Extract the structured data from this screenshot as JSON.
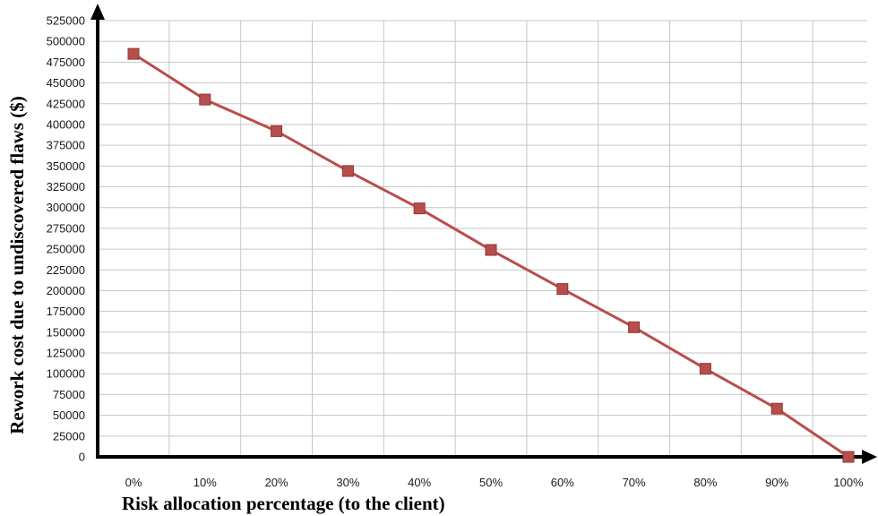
{
  "chart_data": {
    "type": "line",
    "title": "",
    "xlabel": "Risk allocation percentage (to the client)",
    "ylabel": "Rework cost due to undiscovered flaws ($)",
    "categories": [
      "0%",
      "10%",
      "20%",
      "30%",
      "40%",
      "50%",
      "60%",
      "70%",
      "80%",
      "90%",
      "100%"
    ],
    "series": [
      {
        "values": [
          485000,
          430000,
          392000,
          344000,
          299000,
          249000,
          202000,
          156000,
          106000,
          58000,
          0
        ]
      }
    ],
    "ylim": [
      0,
      525000
    ],
    "ytick_step": 25000,
    "grid": true,
    "legend": "none",
    "colors": {
      "line": "#b84e4c",
      "marker": "#b84e4c",
      "marker_stroke": "#8e3533",
      "grid": "#c6c6c6",
      "axis": "#000000"
    }
  }
}
